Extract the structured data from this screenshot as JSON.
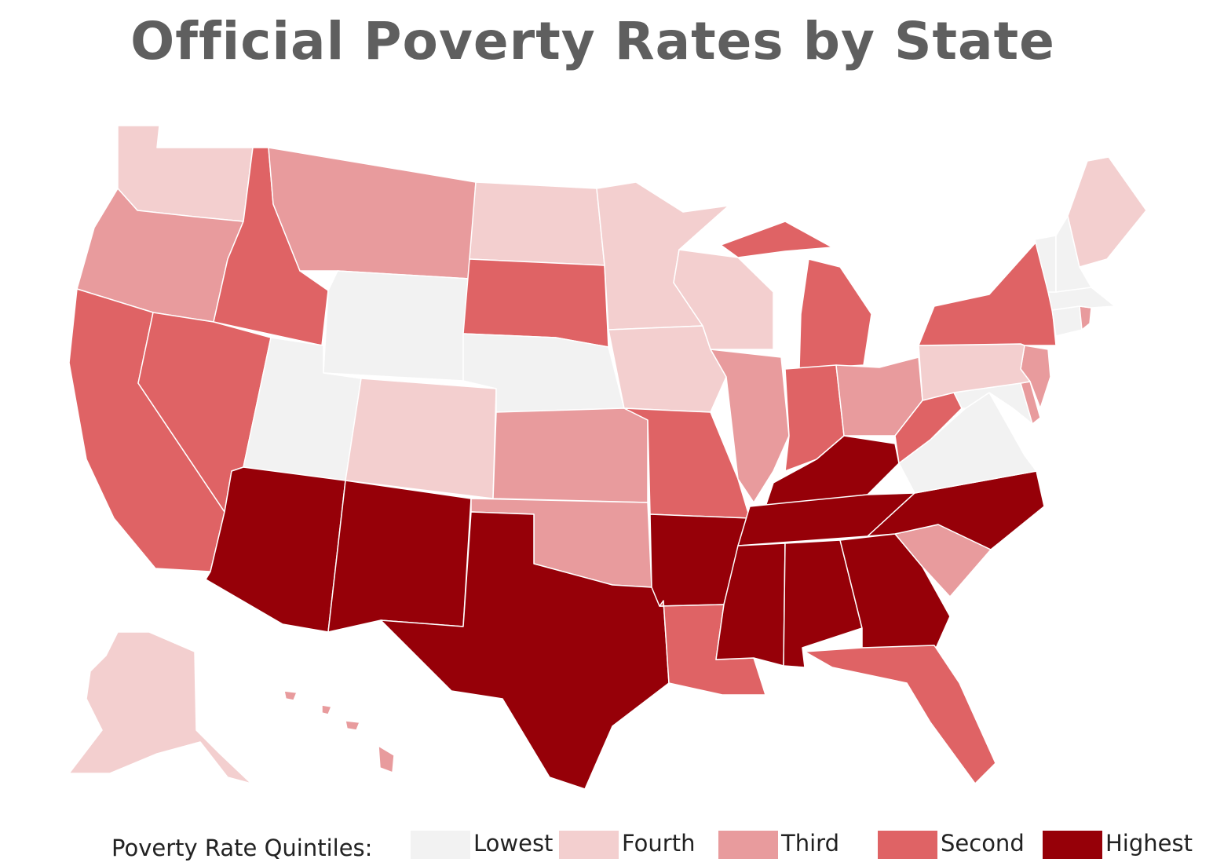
{
  "title": "Official Poverty Rates by State",
  "legend": {
    "label": "Poverty Rate Quintiles:",
    "items": [
      {
        "key": "lowest",
        "label": "Lowest",
        "color": "#f2f2f2"
      },
      {
        "key": "fourth",
        "label": "Fourth",
        "color": "#f3cfcf"
      },
      {
        "key": "third",
        "label": "Third",
        "color": "#e89b9d"
      },
      {
        "key": "second",
        "label": "Second",
        "color": "#df6365"
      },
      {
        "key": "highest",
        "label": "Highest",
        "color": "#960008"
      }
    ]
  },
  "states": [
    {
      "abbr": "WA",
      "quintile": "fourth"
    },
    {
      "abbr": "OR",
      "quintile": "third"
    },
    {
      "abbr": "CA",
      "quintile": "second"
    },
    {
      "abbr": "ID",
      "quintile": "second"
    },
    {
      "abbr": "NV",
      "quintile": "second"
    },
    {
      "abbr": "MT",
      "quintile": "third"
    },
    {
      "abbr": "WY",
      "quintile": "lowest"
    },
    {
      "abbr": "UT",
      "quintile": "lowest"
    },
    {
      "abbr": "AZ",
      "quintile": "highest"
    },
    {
      "abbr": "CO",
      "quintile": "fourth"
    },
    {
      "abbr": "NM",
      "quintile": "highest"
    },
    {
      "abbr": "ND",
      "quintile": "fourth"
    },
    {
      "abbr": "SD",
      "quintile": "second"
    },
    {
      "abbr": "NE",
      "quintile": "lowest"
    },
    {
      "abbr": "KS",
      "quintile": "third"
    },
    {
      "abbr": "OK",
      "quintile": "third"
    },
    {
      "abbr": "TX",
      "quintile": "highest"
    },
    {
      "abbr": "MN",
      "quintile": "fourth"
    },
    {
      "abbr": "IA",
      "quintile": "fourth"
    },
    {
      "abbr": "MO",
      "quintile": "second"
    },
    {
      "abbr": "AR",
      "quintile": "highest"
    },
    {
      "abbr": "LA",
      "quintile": "second"
    },
    {
      "abbr": "WI",
      "quintile": "fourth"
    },
    {
      "abbr": "IL",
      "quintile": "third"
    },
    {
      "abbr": "MI",
      "quintile": "second"
    },
    {
      "abbr": "IN",
      "quintile": "second"
    },
    {
      "abbr": "OH",
      "quintile": "third"
    },
    {
      "abbr": "KY",
      "quintile": "highest"
    },
    {
      "abbr": "TN",
      "quintile": "highest"
    },
    {
      "abbr": "MS",
      "quintile": "highest"
    },
    {
      "abbr": "AL",
      "quintile": "highest"
    },
    {
      "abbr": "GA",
      "quintile": "highest"
    },
    {
      "abbr": "FL",
      "quintile": "second"
    },
    {
      "abbr": "SC",
      "quintile": "third"
    },
    {
      "abbr": "NC",
      "quintile": "highest"
    },
    {
      "abbr": "VA",
      "quintile": "lowest"
    },
    {
      "abbr": "WV",
      "quintile": "second"
    },
    {
      "abbr": "MD",
      "quintile": "lowest"
    },
    {
      "abbr": "DE",
      "quintile": "third"
    },
    {
      "abbr": "NJ",
      "quintile": "third"
    },
    {
      "abbr": "PA",
      "quintile": "fourth"
    },
    {
      "abbr": "NY",
      "quintile": "second"
    },
    {
      "abbr": "CT",
      "quintile": "lowest"
    },
    {
      "abbr": "RI",
      "quintile": "third"
    },
    {
      "abbr": "MA",
      "quintile": "lowest"
    },
    {
      "abbr": "VT",
      "quintile": "lowest"
    },
    {
      "abbr": "NH",
      "quintile": "lowest"
    },
    {
      "abbr": "ME",
      "quintile": "fourth"
    },
    {
      "abbr": "AK",
      "quintile": "fourth"
    },
    {
      "abbr": "HI",
      "quintile": "third"
    }
  ]
}
